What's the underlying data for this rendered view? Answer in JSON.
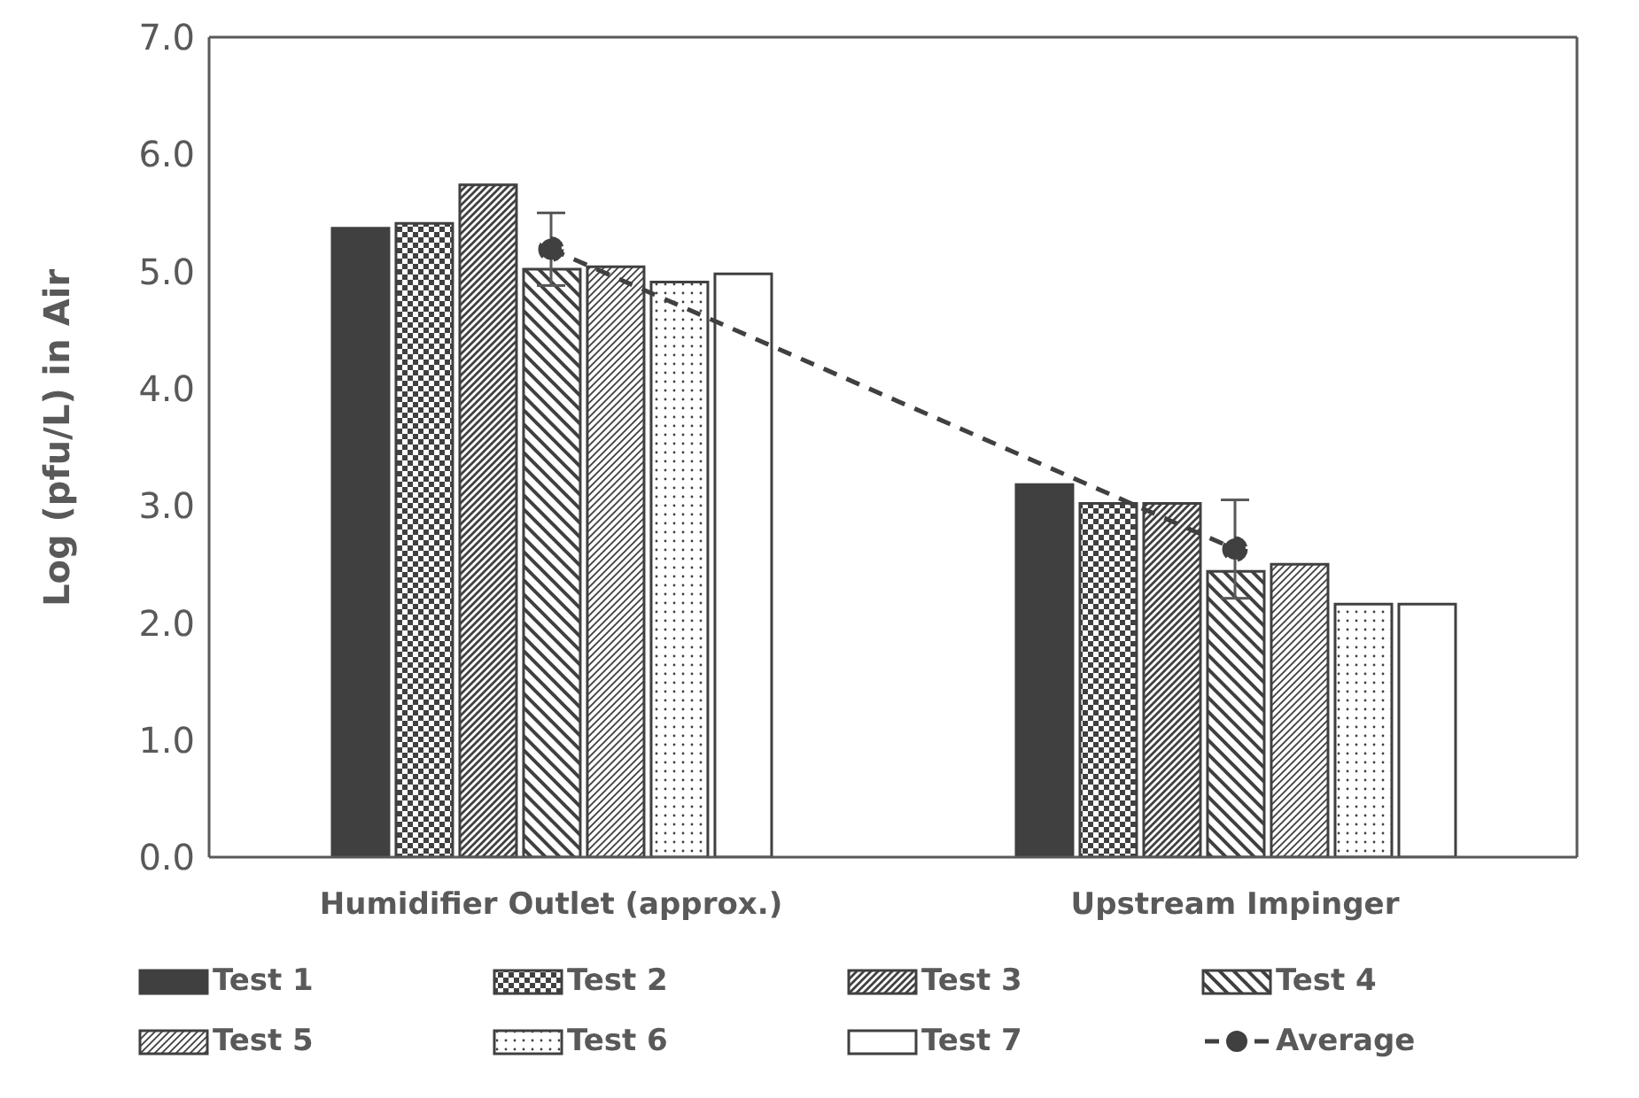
{
  "chart_data": {
    "type": "bar",
    "ylabel": "Log (pfu/L) in Air",
    "categories": [
      "Humidifier Outlet (approx.)",
      "Upstream Impinger"
    ],
    "series": [
      {
        "name": "Test 1",
        "color": "#404040",
        "values": [
          5.37,
          3.18
        ]
      },
      {
        "name": "Test 2",
        "color": "#404040",
        "values": [
          5.41,
          3.02
        ]
      },
      {
        "name": "Test 3",
        "color": "#404040",
        "values": [
          5.74,
          3.02
        ]
      },
      {
        "name": "Test 4",
        "color": "#404040",
        "values": [
          5.02,
          2.44
        ]
      },
      {
        "name": "Test 5",
        "color": "#404040",
        "values": [
          5.04,
          2.5
        ]
      },
      {
        "name": "Test 6",
        "color": "#404040",
        "values": [
          4.91,
          2.16
        ]
      },
      {
        "name": "Test 7",
        "color": "#ffffff",
        "values": [
          4.98,
          2.16
        ]
      },
      {
        "name": "Average",
        "type": "line",
        "color": "#404040",
        "values": [
          5.19,
          2.63
        ],
        "errors": [
          0.31,
          0.42
        ],
        "marker": "circle",
        "line_style": "dashed"
      }
    ],
    "ylim": [
      0,
      7
    ],
    "yticks": [
      {
        "value": 0,
        "label": "0.0"
      },
      {
        "value": 1,
        "label": "1.0"
      },
      {
        "value": 2,
        "label": "2.0"
      },
      {
        "value": 3,
        "label": "3.0"
      },
      {
        "value": 4,
        "label": "4.0"
      },
      {
        "value": 5,
        "label": "5.0"
      },
      {
        "value": 6,
        "label": "6.0"
      },
      {
        "value": 7,
        "label": "7.0"
      }
    ],
    "grid": false,
    "legend": "bottom"
  }
}
